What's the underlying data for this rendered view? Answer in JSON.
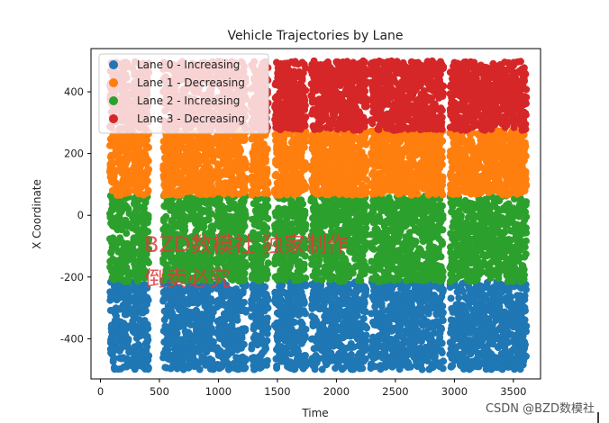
{
  "chart_data": {
    "type": "scatter",
    "title": "Vehicle Trajectories by Lane",
    "xlabel": "Time",
    "ylabel": "X Coordinate",
    "xlim": [
      -80,
      3730
    ],
    "ylim": [
      -530,
      540
    ],
    "xticks": [
      0,
      500,
      1000,
      1500,
      2000,
      2500,
      3000,
      3500
    ],
    "yticks": [
      -400,
      -200,
      0,
      200,
      400
    ],
    "legend_position": "top-left",
    "series": [
      {
        "name": "Lane 0 - Increasing",
        "color": "#1f77b4",
        "y_range": [
          -500,
          -215
        ]
      },
      {
        "name": "Lane 1 - Decreasing",
        "color": "#ff7f0e",
        "y_range": [
          65,
          275
        ]
      },
      {
        "name": "Lane 2 - Increasing",
        "color": "#2ca02c",
        "y_range": [
          -215,
          65
        ]
      },
      {
        "name": "Lane 3 - Decreasing",
        "color": "#d62728",
        "y_range": [
          275,
          500
        ]
      }
    ],
    "gaps": [
      [
        240,
        260
      ],
      [
        400,
        530
      ],
      [
        960,
        980
      ],
      [
        1230,
        1270
      ],
      [
        1420,
        1470
      ],
      [
        1740,
        1780
      ],
      [
        2250,
        2280
      ],
      [
        2900,
        2960
      ]
    ],
    "time_range": [
      80,
      3600
    ]
  },
  "watermark": {
    "line1": "BZD数模社 独家制作",
    "line2": "倒卖必究"
  },
  "credit": "CSDN @BZD数模社"
}
